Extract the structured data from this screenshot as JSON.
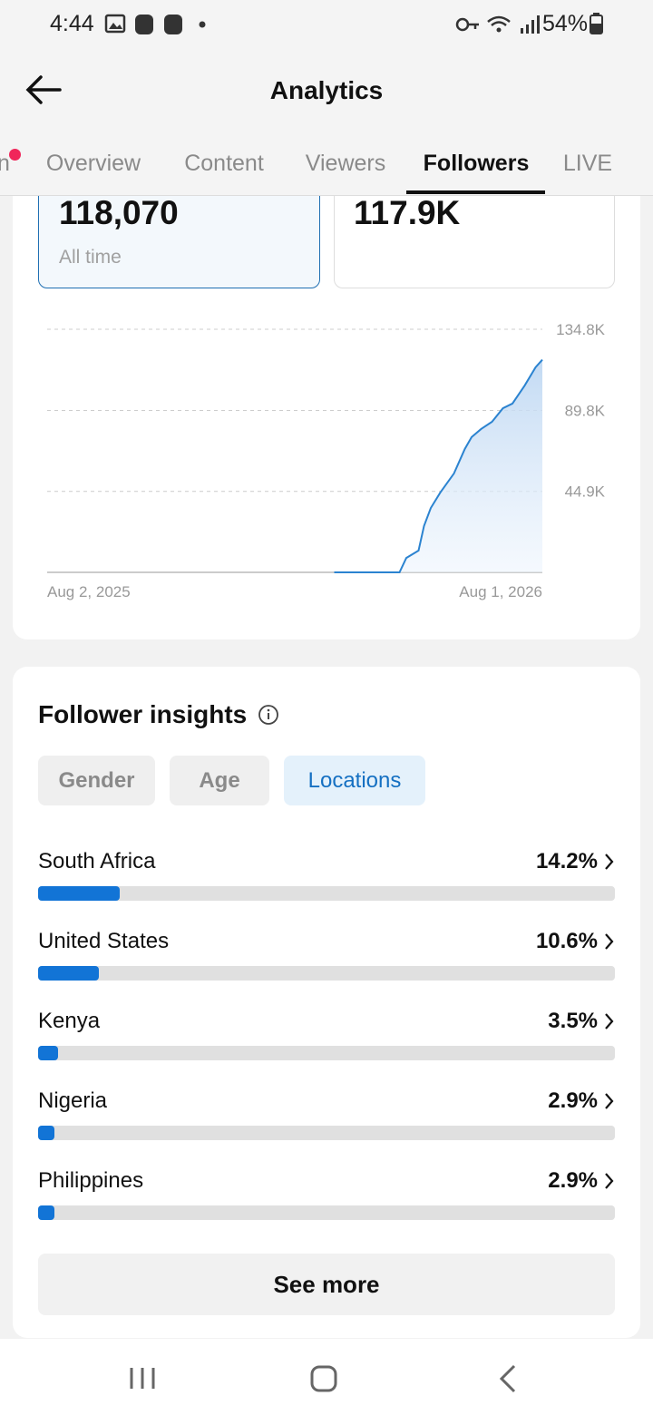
{
  "status_bar": {
    "time": "4:44",
    "battery": "54%"
  },
  "header": {
    "title": "Analytics"
  },
  "tabs": [
    "n",
    "Overview",
    "Content",
    "Viewers",
    "Followers",
    "LIVE"
  ],
  "stats": [
    {
      "value": "118,070",
      "label": "All time"
    },
    {
      "value": "117.9K"
    }
  ],
  "insights": {
    "title": "Follower insights",
    "filters": [
      "Gender",
      "Age",
      "Locations"
    ],
    "button": "See more"
  },
  "chart_data": [
    {
      "type": "line",
      "x": [
        "Mar 1, 2026",
        "Apr 18, 2026",
        "Apr 23, 2026",
        "May 2, 2026",
        "May 6, 2026",
        "May 11, 2026",
        "May 18, 2026",
        "May 28, 2026",
        "Jun 5, 2026",
        "Jun 10, 2026",
        "Jun 17, 2026",
        "Jun 25, 2026",
        "Jul 3, 2026",
        "Jul 10, 2026",
        "Jul 19, 2026",
        "Jul 27, 2026",
        "Aug 1, 2026"
      ],
      "values": [
        0,
        0,
        8000,
        12100,
        25700,
        35700,
        44300,
        54800,
        68400,
        75000,
        79500,
        83500,
        91000,
        93600,
        103600,
        113700,
        117900
      ],
      "color": "#2b83d0",
      "xlim": [
        "Aug 2, 2025",
        "Aug 1, 2026"
      ],
      "xticks": [
        "Aug 2, 2025",
        "Aug 1, 2026"
      ],
      "ylim": [
        0,
        134800
      ],
      "yticks": [
        {
          "value": 44900,
          "label": "44.9K"
        },
        {
          "value": 89800,
          "label": "89.8K"
        },
        {
          "value": 134800,
          "label": "134.8K"
        }
      ],
      "grid": true
    },
    {
      "type": "bar",
      "categories": [
        "South Africa",
        "United States",
        "Kenya",
        "Nigeria",
        "Philippines"
      ],
      "values": [
        14.2,
        10.6,
        3.5,
        2.9,
        2.9
      ],
      "value_labels": [
        "14.2%",
        "10.6%",
        "3.5%",
        "2.9%",
        "2.9%"
      ],
      "xlim": [
        0,
        100
      ],
      "color": "#1274d6"
    }
  ]
}
